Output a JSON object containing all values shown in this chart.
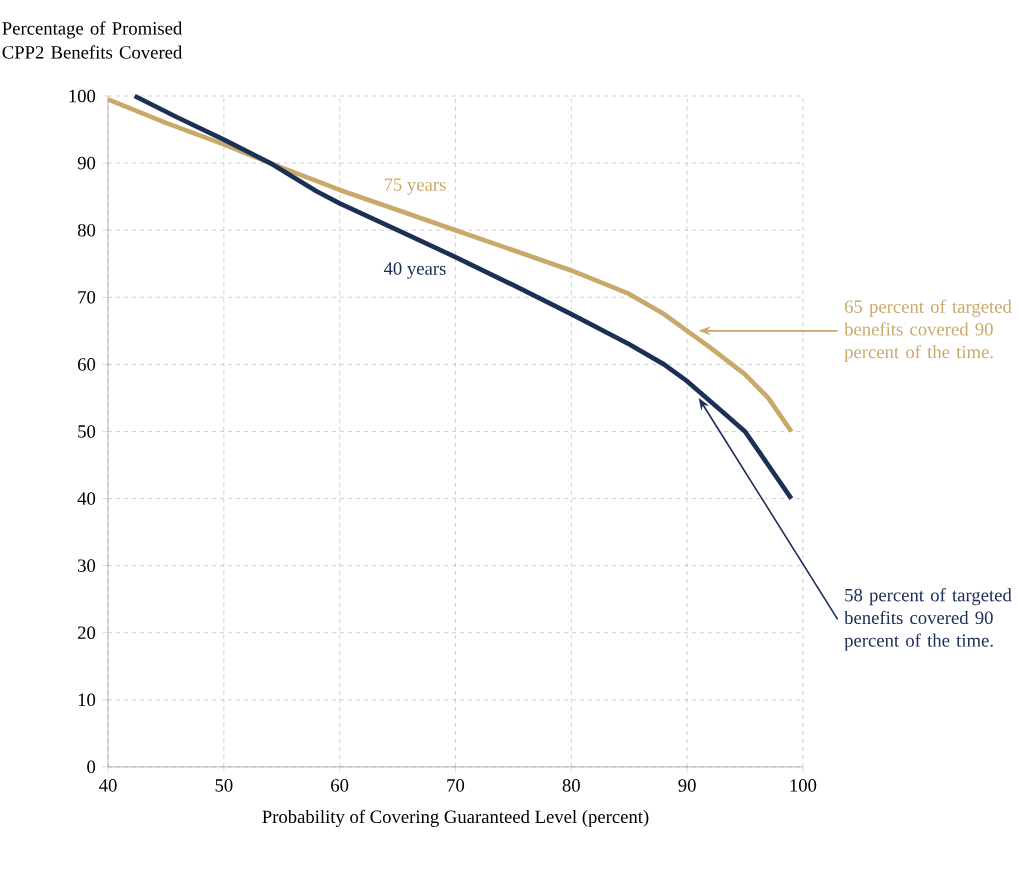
{
  "chart_data": {
    "type": "line",
    "xlabel": "Probability of Covering Guaranteed Level (percent)",
    "ylabel": "Percentage of Promised CPP2 Benefits Covered",
    "xlim": [
      40,
      100
    ],
    "ylim": [
      0,
      100
    ],
    "xticks": [
      40,
      50,
      60,
      70,
      80,
      90,
      100
    ],
    "yticks": [
      0,
      10,
      20,
      30,
      40,
      50,
      60,
      70,
      80,
      90,
      100
    ],
    "grid": true,
    "legend": false,
    "marker": "none",
    "line_style": "solid",
    "series": [
      {
        "name": "75 years",
        "color": "#c9a96a",
        "x": [
          40,
          45,
          50,
          54,
          60,
          65,
          70,
          75,
          80,
          85,
          88,
          90,
          92,
          95,
          97,
          99
        ],
        "values": [
          99.5,
          96,
          92.8,
          90,
          86,
          83,
          80,
          77,
          74,
          70.5,
          67.5,
          65,
          62.5,
          58.5,
          55,
          50
        ]
      },
      {
        "name": "40 years",
        "color": "#1c2f57",
        "x": [
          42.3,
          46,
          50,
          54,
          58,
          60,
          65,
          70,
          75,
          80,
          85,
          88,
          90,
          93,
          95,
          97,
          99
        ],
        "values": [
          100,
          96.8,
          93.5,
          90,
          85.8,
          84,
          80,
          76,
          71.8,
          67.5,
          63,
          60,
          57.5,
          53,
          50,
          45,
          40
        ]
      }
    ],
    "annotations": [
      {
        "text": "65 percent of targeted benefits covered 90 percent of the time.",
        "x": 91,
        "y": 65
      },
      {
        "text": "58 percent of targeted benefits covered 90 percent of the time.",
        "x": 91,
        "y": 55
      }
    ]
  }
}
